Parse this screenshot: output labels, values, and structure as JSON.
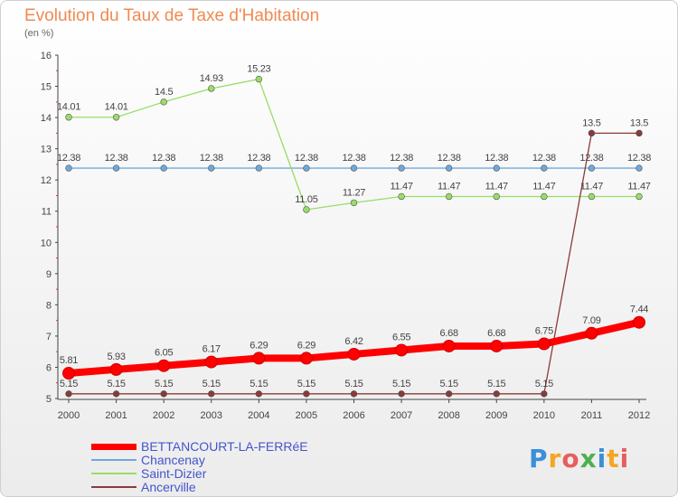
{
  "title": "Evolution du Taux de Taxe d'Habitation",
  "unit": "(en %)",
  "logo_text": "Proxiti",
  "chart_data": {
    "type": "line",
    "title": "Evolution du Taux de Taxe d'Habitation",
    "subtitle": "(en %)",
    "xlabel": "",
    "ylabel": "",
    "x": [
      "2000",
      "2001",
      "2002",
      "2003",
      "2004",
      "2005",
      "2006",
      "2007",
      "2008",
      "2009",
      "2010",
      "2011",
      "2012"
    ],
    "ylim": [
      5,
      16
    ],
    "yticks": [
      5,
      6,
      7,
      8,
      9,
      10,
      11,
      12,
      13,
      14,
      15,
      16
    ],
    "grid": false,
    "legend_position": "bottom-left",
    "series": [
      {
        "name": "BETTANCOURT-LA-FERRéE",
        "color": "#ff0000",
        "values": [
          5.81,
          5.93,
          6.05,
          6.17,
          6.29,
          6.29,
          6.42,
          6.55,
          6.68,
          6.68,
          6.75,
          7.09,
          7.44
        ],
        "labels": [
          "5.81",
          "5.93",
          "6.05",
          "6.17",
          "6.29",
          "6.29",
          "6.42",
          "6.55",
          "6.68",
          "6.68",
          "6.75",
          "7.09",
          "7.44"
        ]
      },
      {
        "name": "Chancenay",
        "color": "#6fa8dc",
        "values": [
          12.38,
          12.38,
          12.38,
          12.38,
          12.38,
          12.38,
          12.38,
          12.38,
          12.38,
          12.38,
          12.38,
          12.38,
          12.38
        ],
        "labels": [
          "12.38",
          "12.38",
          "12.38",
          "12.38",
          "12.38",
          "12.38",
          "12.38",
          "12.38",
          "12.38",
          "12.38",
          "12.38",
          "12.38",
          "12.38"
        ]
      },
      {
        "name": "Saint-Dizier",
        "color": "#99dd66",
        "values": [
          14.01,
          14.01,
          14.5,
          14.93,
          15.23,
          11.05,
          11.27,
          11.47,
          11.47,
          11.47,
          11.47,
          11.47,
          11.47
        ],
        "labels": [
          "14.01",
          "14.01",
          "14.5",
          "14.93",
          "15.23",
          "11.05",
          "11.27",
          "11.47",
          "11.47",
          "11.47",
          "11.47",
          "11.47",
          "11.47"
        ]
      },
      {
        "name": "Ancerville",
        "color": "#8b3a3a",
        "values": [
          5.15,
          5.15,
          5.15,
          5.15,
          5.15,
          5.15,
          5.15,
          5.15,
          5.15,
          5.15,
          5.15,
          13.5,
          13.5
        ],
        "labels": [
          "5.15",
          "5.15",
          "5.15",
          "5.15",
          "5.15",
          "5.15",
          "5.15",
          "5.15",
          "5.15",
          "5.15",
          "5.15",
          "13.5",
          "13.5"
        ]
      }
    ]
  },
  "legend": [
    {
      "label": "BETTANCOURT-LA-FERRéE",
      "color": "#ff0000"
    },
    {
      "label": "Chancenay",
      "color": "#6fa8dc"
    },
    {
      "label": "Saint-Dizier",
      "color": "#99dd66"
    },
    {
      "label": "Ancerville",
      "color": "#8b3a3a"
    }
  ]
}
